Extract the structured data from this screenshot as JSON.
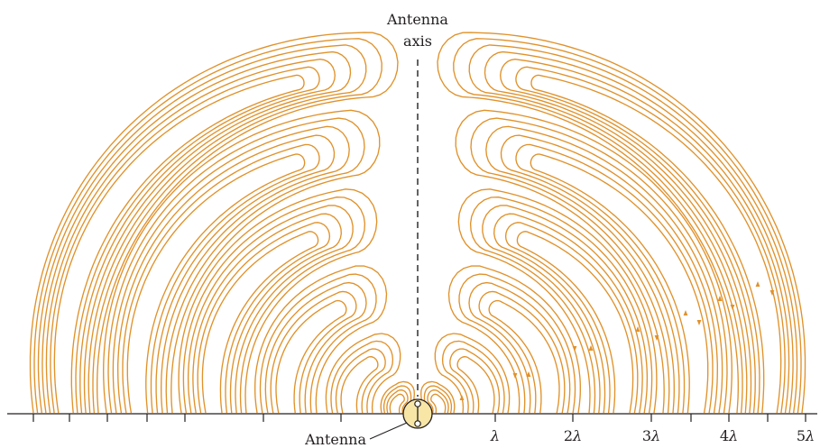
{
  "figure": {
    "axis_label_line1": "Antenna",
    "axis_label_line2": "axis",
    "antenna_label": "Antenna",
    "lambda_symbol": "λ",
    "scale_labels": [
      {
        "coef": "",
        "sym": "λ"
      },
      {
        "coef": "2",
        "sym": "λ"
      },
      {
        "coef": "3",
        "sym": "λ"
      },
      {
        "coef": "4",
        "sym": "λ"
      },
      {
        "coef": "5",
        "sym": "λ"
      }
    ],
    "colors": {
      "field_lines": "#e0922b",
      "axis": "#231f20",
      "antenna_fill": "#f7e6a6",
      "text": "#231f20"
    },
    "icons": {
      "antenna": "dipole-antenna-icon",
      "direction_marker": "arrow-icon"
    }
  }
}
